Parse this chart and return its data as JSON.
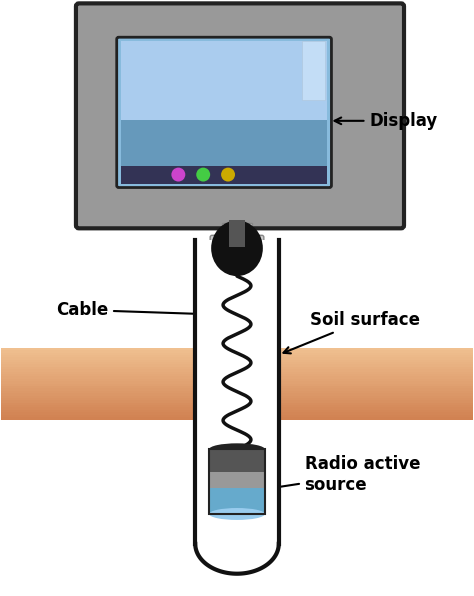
{
  "bg_color": "#ffffff",
  "tube_fill": "#ffffff",
  "tube_border": "#111111",
  "soil_base": "#f0c090",
  "soil_dark": "#d4884a",
  "monitor_outer": "#999999",
  "monitor_border": "#222222",
  "monitor_screen_top": "#a8d4f0",
  "monitor_screen_bot": "#5599cc",
  "monitor_taskbar": "#444444",
  "monitor_stand": "#bbbbbb",
  "plug_color": "#111111",
  "cable_color": "#111111",
  "src_cap": "#222222",
  "src_dark": "#555555",
  "src_mid": "#999999",
  "src_blue": "#66aacc",
  "src_blue2": "#99ccee",
  "label_display": "Display",
  "label_cable": "Cable",
  "label_soil": "Soil surface",
  "label_source": "Radio active\nsource",
  "figsize": [
    4.74,
    5.96
  ],
  "dpi": 100
}
